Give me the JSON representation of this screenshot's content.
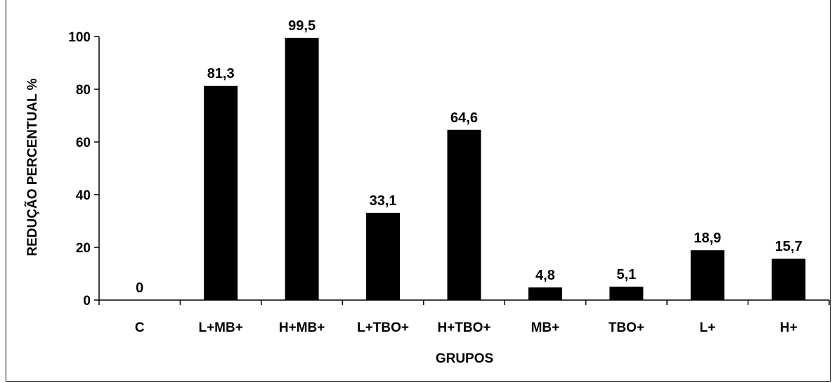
{
  "chart_data": {
    "type": "bar",
    "categories": [
      "C",
      "L+MB+",
      "H+MB+",
      "L+TBO+",
      "H+TBO+",
      "MB+",
      "TBO+",
      "L+",
      "H+"
    ],
    "values": [
      0,
      81.3,
      99.5,
      33.1,
      64.6,
      4.8,
      5.1,
      18.9,
      15.7
    ],
    "data_labels": [
      "0",
      "81,3",
      "99,5",
      "33,1",
      "64,6",
      "4,8",
      "5,1",
      "18,9",
      "15,7"
    ],
    "xlabel": "GRUPOS",
    "ylabel": "REDUÇÃO PERCENTUAL %",
    "ylim": [
      0,
      100
    ],
    "yticks": [
      0,
      20,
      40,
      60,
      80,
      100
    ],
    "bar_color": "#000000",
    "grid": false,
    "legend": "none"
  }
}
